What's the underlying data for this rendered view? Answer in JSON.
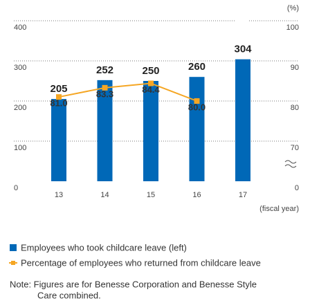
{
  "chart_data": {
    "type": "bar_line",
    "categories": [
      "13",
      "14",
      "15",
      "16",
      "17"
    ],
    "x_label": "(fiscal year)",
    "y2_label": "(%)",
    "series": [
      {
        "name": "Employees who took childcare leave (left)",
        "color": "#0068b7",
        "values": [
          205,
          252,
          250,
          260,
          304
        ]
      },
      {
        "name": "Percentage of employees who returned from childcare leave",
        "color": "#f5a623",
        "axis": "y2",
        "values": [
          81.0,
          83.3,
          84.4,
          80.0,
          null
        ],
        "value_labels": [
          "81.0",
          "83.3",
          "84.4",
          "80.0",
          null
        ]
      }
    ],
    "ylim": [
      0,
      400
    ],
    "yticks": [
      0,
      100,
      200,
      300,
      400
    ],
    "y2lim": [
      70,
      100
    ],
    "y2ticks": [
      0,
      70,
      80,
      90,
      100
    ],
    "y2_break": true,
    "grid": true,
    "note": [
      "Note: Figures are for Benesse Corporation and Benesse Style",
      "Care combined."
    ]
  }
}
